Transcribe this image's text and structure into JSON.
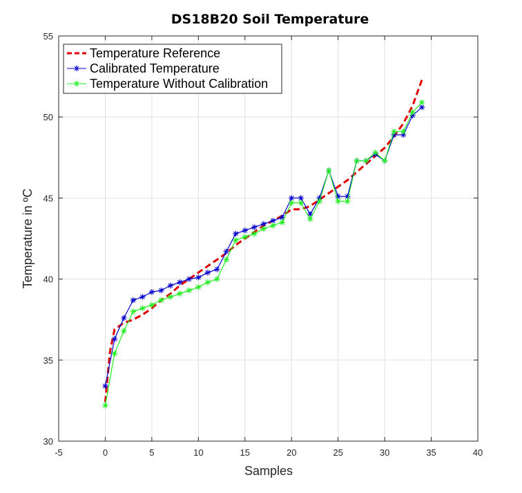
{
  "chart_data": {
    "type": "line",
    "title": "DS18B20 Soil Temperature",
    "xlabel": "Samples",
    "ylabel": "Temperature in ºC",
    "xlim": [
      -5,
      40
    ],
    "ylim": [
      30,
      55
    ],
    "xticks": [
      "-5",
      "0",
      "5",
      "10",
      "15",
      "20",
      "25",
      "30",
      "35",
      "40"
    ],
    "yticks": [
      "30",
      "35",
      "40",
      "45",
      "50",
      "55"
    ],
    "grid": true,
    "legend_position": "top-left",
    "series": [
      {
        "name": "Temperature Reference",
        "color": "#e00000",
        "style": "dashed",
        "x": [
          0,
          0.5,
          1,
          2,
          3,
          4,
          5,
          6,
          7,
          8,
          9,
          10,
          11,
          12,
          13,
          14,
          15,
          16,
          17,
          18,
          19,
          20,
          21,
          22,
          23,
          24,
          25,
          26,
          27,
          28,
          29,
          30,
          31,
          32,
          33,
          34
        ],
        "y": [
          32.4,
          35.5,
          36.9,
          37.3,
          37.5,
          37.8,
          38.2,
          38.7,
          39.1,
          39.6,
          40.0,
          40.4,
          40.8,
          41.2,
          41.6,
          42.1,
          42.5,
          42.9,
          43.3,
          43.6,
          43.9,
          44.3,
          44.3,
          44.5,
          44.9,
          45.3,
          45.7,
          46.1,
          46.6,
          47.1,
          47.6,
          48.1,
          48.8,
          49.6,
          50.7,
          52.3
        ]
      },
      {
        "name": "Calibrated Temperature",
        "color": "#0000cc",
        "style": "solid",
        "x": [
          0,
          1,
          2,
          3,
          4,
          5,
          6,
          7,
          8,
          9,
          10,
          11,
          12,
          13,
          14,
          15,
          16,
          17,
          18,
          19,
          20,
          21,
          22,
          23,
          24,
          25,
          26,
          27,
          28,
          29,
          30,
          31,
          32,
          33,
          34
        ],
        "y": [
          33.4,
          36.3,
          37.6,
          38.7,
          38.9,
          39.2,
          39.3,
          39.6,
          39.8,
          40.0,
          40.1,
          40.4,
          40.6,
          41.7,
          42.8,
          43.0,
          43.2,
          43.4,
          43.6,
          43.8,
          45.0,
          45.0,
          44.0,
          45.0,
          46.7,
          45.1,
          45.1,
          47.3,
          47.3,
          47.7,
          47.3,
          48.9,
          48.9,
          50.1,
          50.6
        ]
      },
      {
        "name": "Temperature Without Calibration",
        "color": "#22ee22",
        "style": "solid",
        "x": [
          0,
          1,
          2,
          3,
          4,
          5,
          6,
          7,
          8,
          9,
          10,
          11,
          12,
          13,
          14,
          15,
          16,
          17,
          18,
          19,
          20,
          21,
          22,
          23,
          24,
          25,
          26,
          27,
          28,
          29,
          30,
          31,
          32,
          33,
          34
        ],
        "y": [
          32.2,
          35.4,
          36.8,
          38.0,
          38.2,
          38.4,
          38.7,
          38.9,
          39.1,
          39.3,
          39.5,
          39.8,
          40.0,
          41.2,
          42.4,
          42.6,
          42.8,
          43.1,
          43.3,
          43.5,
          44.7,
          44.7,
          43.7,
          44.8,
          46.7,
          44.8,
          44.8,
          47.3,
          47.3,
          47.8,
          47.3,
          49.1,
          49.1,
          50.3,
          50.9
        ]
      }
    ]
  }
}
